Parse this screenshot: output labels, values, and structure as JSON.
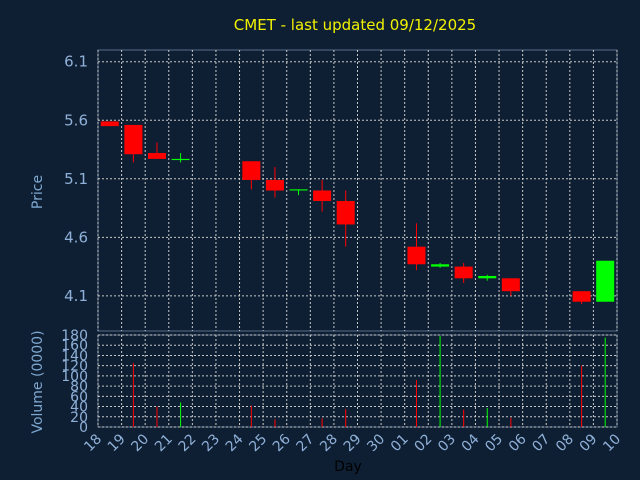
{
  "chart_data": {
    "type": "candlestick",
    "title": "CMET - last updated 09/12/2025",
    "ylabel": "Price",
    "volume_label": "Volume (0000)",
    "xlabel": "Day",
    "price_ylim": [
      3.8,
      6.2
    ],
    "price_ticks": [
      "6.1",
      "5.6",
      "5.1",
      "4.6",
      "4.1"
    ],
    "volume_ylim": [
      0,
      180
    ],
    "volume_ticks": [
      "180",
      "160",
      "140",
      "120",
      "100",
      "80",
      "60",
      "40",
      "20",
      "0"
    ],
    "x_ticks": [
      "18",
      "19",
      "20",
      "21",
      "22",
      "23",
      "24",
      "25",
      "26",
      "27",
      "28",
      "29",
      "30",
      "01",
      "02",
      "03",
      "04",
      "05",
      "06",
      "07",
      "08",
      "09",
      "10"
    ],
    "grid": true,
    "up_color": "#00ff00",
    "down_color": "#ff0000",
    "candles": [
      {
        "day": "18",
        "open": 5.59,
        "high": 5.59,
        "low": 5.55,
        "close": 5.55,
        "volume": 0
      },
      {
        "day": "19",
        "open": 5.56,
        "high": 5.56,
        "low": 5.24,
        "close": 5.31,
        "volume": 125
      },
      {
        "day": "20",
        "open": 5.32,
        "high": 5.41,
        "low": 5.27,
        "close": 5.27,
        "volume": 40
      },
      {
        "day": "21",
        "open": 5.26,
        "high": 5.32,
        "low": 5.24,
        "close": 5.27,
        "volume": 48
      },
      {
        "day": "24",
        "open": 5.25,
        "high": 5.25,
        "low": 5.01,
        "close": 5.09,
        "volume": 42
      },
      {
        "day": "25",
        "open": 5.09,
        "high": 5.2,
        "low": 4.94,
        "close": 5.0,
        "volume": 15
      },
      {
        "day": "26",
        "open": 5.0,
        "high": 5.01,
        "low": 4.96,
        "close": 5.01,
        "volume": 0
      },
      {
        "day": "27",
        "open": 5.0,
        "high": 5.09,
        "low": 4.82,
        "close": 4.91,
        "volume": 17
      },
      {
        "day": "28",
        "open": 4.91,
        "high": 5.0,
        "low": 4.52,
        "close": 4.71,
        "volume": 35
      },
      {
        "day": "01",
        "open": 4.52,
        "high": 4.72,
        "low": 4.32,
        "close": 4.37,
        "volume": 92
      },
      {
        "day": "02",
        "open": 4.35,
        "high": 4.38,
        "low": 4.34,
        "close": 4.37,
        "volume": 178
      },
      {
        "day": "03",
        "open": 4.35,
        "high": 4.38,
        "low": 4.21,
        "close": 4.25,
        "volume": 34
      },
      {
        "day": "04",
        "open": 4.25,
        "high": 4.28,
        "low": 4.23,
        "close": 4.27,
        "volume": 37
      },
      {
        "day": "05",
        "open": 4.25,
        "high": 4.25,
        "low": 4.1,
        "close": 4.14,
        "volume": 18
      },
      {
        "day": "08",
        "open": 4.14,
        "high": 4.14,
        "low": 4.03,
        "close": 4.05,
        "volume": 120
      },
      {
        "day": "09",
        "open": 4.05,
        "high": 4.4,
        "low": 4.05,
        "close": 4.4,
        "volume": 175
      }
    ]
  }
}
